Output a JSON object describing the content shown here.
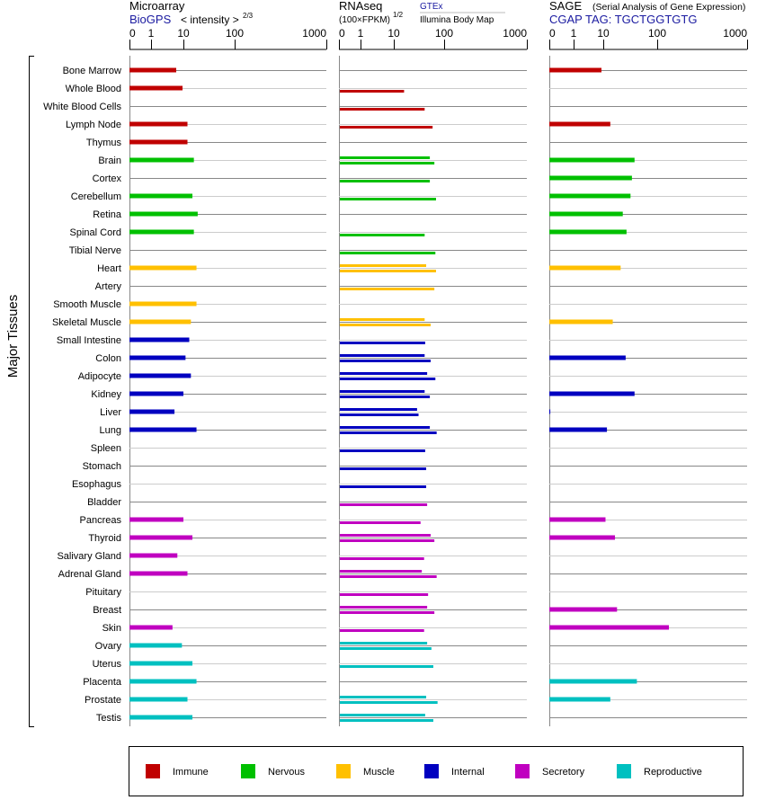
{
  "chart_data": {
    "type": "bar",
    "orientation": "horizontal",
    "ylabel": "Major Tissues",
    "scale": "non-linear (ticks 0, 1, 10, 100, 1000)",
    "categories": [
      "Bone Marrow",
      "Whole Blood",
      "White Blood Cells",
      "Lymph Node",
      "Thymus",
      "Brain",
      "Cortex",
      "Cerebellum",
      "Retina",
      "Spinal Cord",
      "Tibial Nerve",
      "Heart",
      "Artery",
      "Smooth Muscle",
      "Skeletal Muscle",
      "Small Intestine",
      "Colon",
      "Adipocyte",
      "Kidney",
      "Liver",
      "Lung",
      "Spleen",
      "Stomach",
      "Esophagus",
      "Bladder",
      "Pancreas",
      "Thyroid",
      "Salivary Gland",
      "Adrenal Gland",
      "Pituitary",
      "Breast",
      "Skin",
      "Ovary",
      "Uterus",
      "Placenta",
      "Prostate",
      "Testis"
    ],
    "groups": [
      {
        "name": "Immune",
        "color": "#c00000",
        "count": 5
      },
      {
        "name": "Nervous",
        "color": "#00c000",
        "count": 6
      },
      {
        "name": "Muscle",
        "color": "#ffc000",
        "count": 4
      },
      {
        "name": "Internal",
        "color": "#0000c0",
        "count": 9
      },
      {
        "name": "Secretory",
        "color": "#c000c0",
        "count": 8
      },
      {
        "name": "Reproductive",
        "color": "#00c0c0",
        "count": 5
      }
    ],
    "panels": [
      {
        "title": "Microarray",
        "source": "BioGPS",
        "unit": "< intensity >",
        "unit_exp": "2/3",
        "ticks": [
          "0",
          "1",
          "10",
          "100",
          "1000"
        ],
        "xlim": [
          0,
          1000
        ],
        "values": [
          6,
          9.4,
          null,
          12,
          12,
          16,
          null,
          15,
          19,
          16,
          null,
          18,
          null,
          18,
          14,
          13,
          11,
          14,
          10,
          5.3,
          18,
          null,
          null,
          null,
          null,
          10,
          15,
          6.5,
          12,
          null,
          null,
          4.6,
          9,
          15,
          18,
          12,
          15
        ]
      },
      {
        "title": "RNAseq",
        "source": "GTEx",
        "source2": "Illumina Body Map",
        "unit": "(100×FPKM)",
        "unit_exp": "1/2",
        "ticks": [
          "0",
          "1",
          "10",
          "100",
          "1000"
        ],
        "xlim": [
          0,
          1000
        ],
        "values": [
          [],
          [
            16
          ],
          [
            41
          ],
          [
            59
          ],
          [],
          [
            52,
            64
          ],
          [
            52
          ],
          [
            69
          ],
          [],
          [
            41
          ],
          [
            67
          ],
          [
            44,
            69
          ],
          [
            64
          ],
          [],
          [
            41,
            54
          ],
          [
            42
          ],
          [
            41,
            54
          ],
          [
            46,
            67
          ],
          [
            41,
            52
          ],
          [
            29,
            31
          ],
          [
            52,
            71
          ],
          [
            42
          ],
          [
            44
          ],
          [
            44
          ],
          [
            46
          ],
          [
            34
          ],
          [
            54,
            64
          ],
          [
            40
          ],
          [
            36,
            71
          ],
          [
            48
          ],
          [
            46,
            64
          ],
          [
            40
          ],
          [
            46,
            56
          ],
          [
            61
          ],
          [],
          [
            44,
            74
          ],
          [
            42,
            61
          ]
        ]
      },
      {
        "title": "SAGE",
        "subtitle": "(Serial Analysis of Gene Expression)",
        "source": "CGAP TAG: TGCTGGTGTG",
        "ticks": [
          "0",
          "1",
          "10",
          "100",
          "1000"
        ],
        "xlim": [
          0,
          1000
        ],
        "values": [
          8.7,
          null,
          null,
          13.5,
          null,
          38,
          34,
          32,
          23,
          27,
          null,
          21,
          null,
          null,
          15,
          null,
          26,
          null,
          38,
          0.04,
          11.7,
          null,
          null,
          null,
          null,
          11,
          16.5,
          null,
          null,
          null,
          18,
          135,
          null,
          null,
          42,
          13.5,
          null
        ]
      }
    ],
    "legend": {
      "placement": "bottom",
      "items": [
        "Immune",
        "Nervous",
        "Muscle",
        "Internal",
        "Secretory",
        "Reproductive"
      ]
    }
  }
}
